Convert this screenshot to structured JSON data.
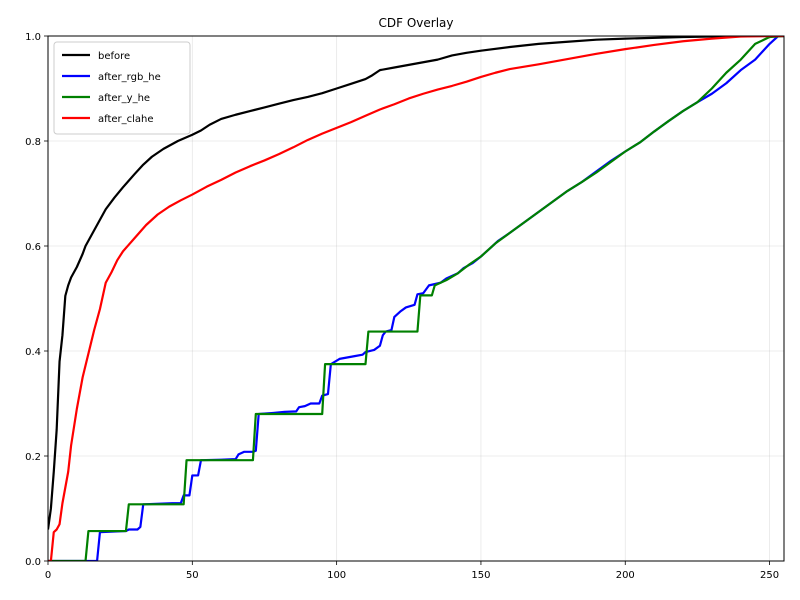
{
  "chart_data": {
    "type": "line",
    "title": "CDF Overlay",
    "xlabel": "",
    "ylabel": "",
    "xlim": [
      0,
      255
    ],
    "ylim": [
      0,
      1
    ],
    "xticks": [
      0,
      50,
      100,
      150,
      200,
      250
    ],
    "yticks": [
      0.0,
      0.2,
      0.4,
      0.6,
      0.8,
      1.0
    ],
    "xtick_labels": [
      "0",
      "50",
      "100",
      "150",
      "200",
      "250"
    ],
    "ytick_labels": [
      "0.0",
      "0.2",
      "0.4",
      "0.6",
      "0.8",
      "1.0"
    ],
    "grid": true,
    "legend_position": "upper-left",
    "series": [
      {
        "name": "before",
        "color": "#000000",
        "points": [
          [
            0,
            0.06
          ],
          [
            1,
            0.1
          ],
          [
            2,
            0.17
          ],
          [
            3,
            0.25
          ],
          [
            4,
            0.38
          ],
          [
            5,
            0.43
          ],
          [
            6,
            0.505
          ],
          [
            7,
            0.525
          ],
          [
            8,
            0.54
          ],
          [
            10,
            0.56
          ],
          [
            12,
            0.585
          ],
          [
            13,
            0.6
          ],
          [
            15,
            0.62
          ],
          [
            18,
            0.65
          ],
          [
            20,
            0.67
          ],
          [
            23,
            0.692
          ],
          [
            26,
            0.712
          ],
          [
            30,
            0.737
          ],
          [
            33,
            0.755
          ],
          [
            36,
            0.77
          ],
          [
            40,
            0.785
          ],
          [
            45,
            0.8
          ],
          [
            50,
            0.812
          ],
          [
            53,
            0.82
          ],
          [
            56,
            0.831
          ],
          [
            60,
            0.842
          ],
          [
            65,
            0.85
          ],
          [
            70,
            0.857
          ],
          [
            75,
            0.864
          ],
          [
            80,
            0.871
          ],
          [
            85,
            0.878
          ],
          [
            90,
            0.884
          ],
          [
            95,
            0.891
          ],
          [
            100,
            0.9
          ],
          [
            105,
            0.909
          ],
          [
            110,
            0.918
          ],
          [
            112,
            0.924
          ],
          [
            115,
            0.935
          ],
          [
            120,
            0.94
          ],
          [
            125,
            0.945
          ],
          [
            130,
            0.95
          ],
          [
            135,
            0.955
          ],
          [
            140,
            0.963
          ],
          [
            145,
            0.968
          ],
          [
            150,
            0.972
          ],
          [
            160,
            0.979
          ],
          [
            170,
            0.985
          ],
          [
            180,
            0.989
          ],
          [
            190,
            0.993
          ],
          [
            200,
            0.995
          ],
          [
            220,
            0.998
          ],
          [
            240,
            1.0
          ],
          [
            255,
            1.0
          ]
        ]
      },
      {
        "name": "after_rgb_he",
        "color": "#0000ff",
        "points": [
          [
            0,
            0
          ],
          [
            17,
            0
          ],
          [
            18,
            0.055
          ],
          [
            27,
            0.057
          ],
          [
            28,
            0.06
          ],
          [
            31,
            0.06
          ],
          [
            32,
            0.065
          ],
          [
            33,
            0.108
          ],
          [
            43,
            0.11
          ],
          [
            46,
            0.11
          ],
          [
            47,
            0.125
          ],
          [
            49,
            0.125
          ],
          [
            50,
            0.163
          ],
          [
            52,
            0.163
          ],
          [
            53,
            0.192
          ],
          [
            60,
            0.193
          ],
          [
            65,
            0.194
          ],
          [
            66,
            0.203
          ],
          [
            68,
            0.208
          ],
          [
            71,
            0.208
          ],
          [
            72,
            0.21
          ],
          [
            73,
            0.28
          ],
          [
            78,
            0.282
          ],
          [
            82,
            0.284
          ],
          [
            86,
            0.285
          ],
          [
            87,
            0.293
          ],
          [
            89,
            0.295
          ],
          [
            91,
            0.3
          ],
          [
            94,
            0.3
          ],
          [
            95,
            0.315
          ],
          [
            97,
            0.318
          ],
          [
            98,
            0.375
          ],
          [
            101,
            0.385
          ],
          [
            106,
            0.39
          ],
          [
            109,
            0.393
          ],
          [
            110,
            0.398
          ],
          [
            113,
            0.402
          ],
          [
            115,
            0.41
          ],
          [
            116,
            0.43
          ],
          [
            117,
            0.437
          ],
          [
            119,
            0.44
          ],
          [
            120,
            0.465
          ],
          [
            122,
            0.475
          ],
          [
            124,
            0.483
          ],
          [
            127,
            0.488
          ],
          [
            128,
            0.508
          ],
          [
            130,
            0.51
          ],
          [
            132,
            0.525
          ],
          [
            136,
            0.53
          ],
          [
            138,
            0.538
          ],
          [
            142,
            0.548
          ],
          [
            144,
            0.558
          ],
          [
            147,
            0.567
          ],
          [
            150,
            0.58
          ],
          [
            153,
            0.595
          ],
          [
            156,
            0.61
          ],
          [
            160,
            0.625
          ],
          [
            165,
            0.645
          ],
          [
            170,
            0.665
          ],
          [
            175,
            0.685
          ],
          [
            180,
            0.705
          ],
          [
            185,
            0.722
          ],
          [
            190,
            0.742
          ],
          [
            195,
            0.762
          ],
          [
            200,
            0.78
          ],
          [
            205,
            0.797
          ],
          [
            210,
            0.818
          ],
          [
            215,
            0.838
          ],
          [
            220,
            0.857
          ],
          [
            225,
            0.874
          ],
          [
            230,
            0.89
          ],
          [
            235,
            0.91
          ],
          [
            240,
            0.935
          ],
          [
            245,
            0.955
          ],
          [
            250,
            0.985
          ],
          [
            253,
            1.0
          ],
          [
            255,
            1.0
          ]
        ]
      },
      {
        "name": "after_y_he",
        "color": "#008000",
        "points": [
          [
            0,
            0
          ],
          [
            13,
            0
          ],
          [
            14,
            0.057
          ],
          [
            27,
            0.057
          ],
          [
            28,
            0.108
          ],
          [
            47,
            0.108
          ],
          [
            48,
            0.192
          ],
          [
            71,
            0.192
          ],
          [
            72,
            0.28
          ],
          [
            95,
            0.28
          ],
          [
            96,
            0.375
          ],
          [
            110,
            0.375
          ],
          [
            111,
            0.437
          ],
          [
            128,
            0.437
          ],
          [
            129,
            0.506
          ],
          [
            133,
            0.506
          ],
          [
            134,
            0.525
          ],
          [
            138,
            0.535
          ],
          [
            142,
            0.548
          ],
          [
            146,
            0.565
          ],
          [
            150,
            0.58
          ],
          [
            155,
            0.605
          ],
          [
            160,
            0.625
          ],
          [
            165,
            0.645
          ],
          [
            170,
            0.665
          ],
          [
            175,
            0.685
          ],
          [
            180,
            0.705
          ],
          [
            185,
            0.722
          ],
          [
            190,
            0.74
          ],
          [
            195,
            0.76
          ],
          [
            200,
            0.78
          ],
          [
            205,
            0.797
          ],
          [
            210,
            0.818
          ],
          [
            215,
            0.838
          ],
          [
            220,
            0.857
          ],
          [
            225,
            0.874
          ],
          [
            230,
            0.9
          ],
          [
            235,
            0.93
          ],
          [
            240,
            0.955
          ],
          [
            245,
            0.985
          ],
          [
            250,
            0.998
          ],
          [
            255,
            1.0
          ]
        ]
      },
      {
        "name": "after_clahe",
        "color": "#ff0000",
        "points": [
          [
            0,
            0
          ],
          [
            1,
            0
          ],
          [
            2,
            0.055
          ],
          [
            3,
            0.06
          ],
          [
            4,
            0.07
          ],
          [
            5,
            0.11
          ],
          [
            6,
            0.14
          ],
          [
            7,
            0.17
          ],
          [
            8,
            0.22
          ],
          [
            10,
            0.29
          ],
          [
            12,
            0.35
          ],
          [
            14,
            0.395
          ],
          [
            16,
            0.44
          ],
          [
            18,
            0.48
          ],
          [
            20,
            0.53
          ],
          [
            22,
            0.55
          ],
          [
            24,
            0.573
          ],
          [
            26,
            0.59
          ],
          [
            30,
            0.615
          ],
          [
            34,
            0.64
          ],
          [
            38,
            0.66
          ],
          [
            42,
            0.675
          ],
          [
            46,
            0.687
          ],
          [
            50,
            0.698
          ],
          [
            55,
            0.713
          ],
          [
            60,
            0.726
          ],
          [
            65,
            0.74
          ],
          [
            70,
            0.752
          ],
          [
            75,
            0.763
          ],
          [
            80,
            0.775
          ],
          [
            85,
            0.788
          ],
          [
            90,
            0.802
          ],
          [
            95,
            0.814
          ],
          [
            100,
            0.825
          ],
          [
            105,
            0.836
          ],
          [
            110,
            0.848
          ],
          [
            115,
            0.86
          ],
          [
            120,
            0.87
          ],
          [
            125,
            0.881
          ],
          [
            130,
            0.89
          ],
          [
            135,
            0.898
          ],
          [
            140,
            0.905
          ],
          [
            145,
            0.913
          ],
          [
            150,
            0.922
          ],
          [
            155,
            0.93
          ],
          [
            160,
            0.937
          ],
          [
            170,
            0.946
          ],
          [
            180,
            0.956
          ],
          [
            190,
            0.966
          ],
          [
            200,
            0.975
          ],
          [
            210,
            0.983
          ],
          [
            220,
            0.99
          ],
          [
            230,
            0.995
          ],
          [
            240,
            0.999
          ],
          [
            250,
            1.0
          ],
          [
            255,
            1.0
          ]
        ]
      }
    ]
  }
}
